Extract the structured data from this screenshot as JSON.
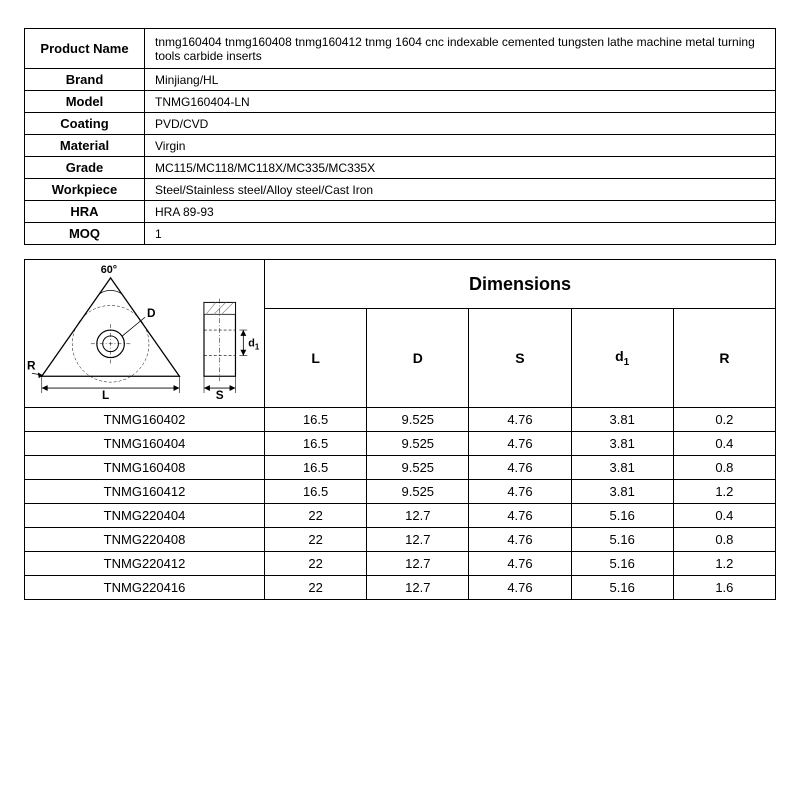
{
  "colors": {
    "text": "#000000",
    "background": "#ffffff",
    "border": "#000000",
    "diagram_fill": "#ffffff",
    "diagram_stroke": "#000000",
    "hatch": "#888888"
  },
  "spec": {
    "rows": [
      {
        "label": "Product Name",
        "value": "tnmg160404 tnmg160408 tnmg160412 tnmg 1604 cnc indexable cemented tungsten lathe machine metal turning tools carbide inserts",
        "tall": true
      },
      {
        "label": "Brand",
        "value": "Minjiang/HL"
      },
      {
        "label": "Model",
        "value": "TNMG160404-LN"
      },
      {
        "label": "Coating",
        "value": "PVD/CVD"
      },
      {
        "label": "Material",
        "value": "Virgin"
      },
      {
        "label": "Grade",
        "value": "MC115/MC118/MC118X/MC335/MC335X"
      },
      {
        "label": "Workpiece",
        "value": "Steel/Stainless steel/Alloy steel/Cast Iron"
      },
      {
        "label": "HRA",
        "value": "HRA 89-93"
      },
      {
        "label": "MOQ",
        "value": "1"
      }
    ]
  },
  "dimensions": {
    "title": "Dimensions",
    "columns": [
      "L",
      "D",
      "S",
      "d1",
      "R"
    ],
    "rows": [
      {
        "name": "TNMG160402",
        "L": "16.5",
        "D": "9.525",
        "S": "4.76",
        "d1": "3.81",
        "R": "0.2"
      },
      {
        "name": "TNMG160404",
        "L": "16.5",
        "D": "9.525",
        "S": "4.76",
        "d1": "3.81",
        "R": "0.4"
      },
      {
        "name": "TNMG160408",
        "L": "16.5",
        "D": "9.525",
        "S": "4.76",
        "d1": "3.81",
        "R": "0.8"
      },
      {
        "name": "TNMG160412",
        "L": "16.5",
        "D": "9.525",
        "S": "4.76",
        "d1": "3.81",
        "R": "1.2"
      },
      {
        "name": "TNMG220404",
        "L": "22",
        "D": "12.7",
        "S": "4.76",
        "d1": "5.16",
        "R": "0.4"
      },
      {
        "name": "TNMG220408",
        "L": "22",
        "D": "12.7",
        "S": "4.76",
        "d1": "5.16",
        "R": "0.8"
      },
      {
        "name": "TNMG220412",
        "L": "22",
        "D": "12.7",
        "S": "4.76",
        "d1": "5.16",
        "R": "1.2"
      },
      {
        "name": "TNMG220416",
        "L": "22",
        "D": "12.7",
        "S": "4.76",
        "d1": "5.16",
        "R": "1.6"
      }
    ]
  },
  "diagram": {
    "angle_label": "60°",
    "labels": {
      "L": "L",
      "D": "D",
      "S": "S",
      "d1": "d1",
      "R": "R"
    }
  }
}
